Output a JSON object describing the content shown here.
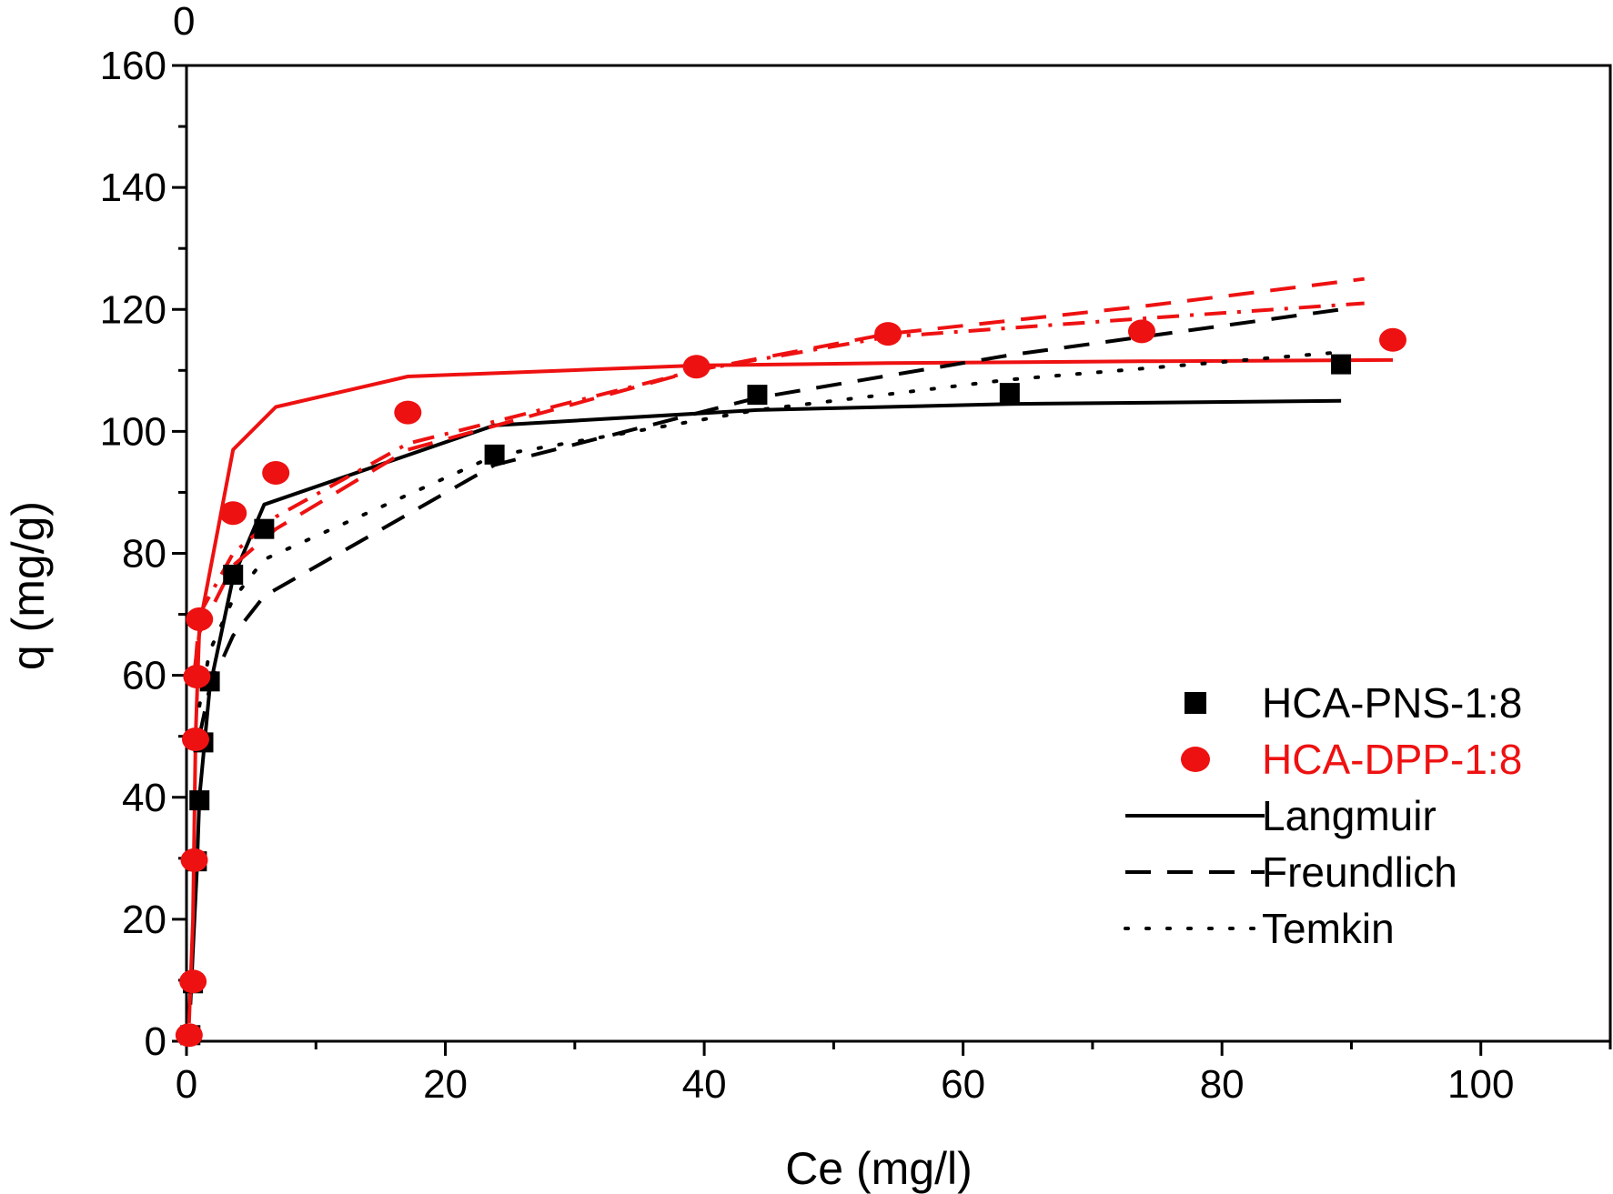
{
  "corner_label": "0",
  "chart_data": {
    "type": "scatter",
    "xlabel": "Ce (mg/l)",
    "ylabel": "q (mg/g)",
    "xlim": [
      0,
      110
    ],
    "ylim": [
      0,
      160
    ],
    "x_ticks": [
      0,
      20,
      40,
      60,
      80,
      100
    ],
    "y_ticks": [
      0,
      20,
      40,
      60,
      80,
      100,
      120,
      140,
      160
    ],
    "grid": false,
    "legend_position": "right-center",
    "colors": {
      "black": "#000000",
      "red": "#ee1111"
    },
    "series": [
      {
        "name": "HCA-PNS-1:8",
        "kind": "markers",
        "marker": "square",
        "color": "#000000",
        "x": [
          0.3,
          0.5,
          0.8,
          1.0,
          1.3,
          1.8,
          3.6,
          6.0,
          23.8,
          44.1,
          63.6,
          89.2
        ],
        "y": [
          1,
          9.5,
          29.5,
          39.5,
          49,
          59,
          76.5,
          84,
          96.2,
          106,
          106.3,
          111
        ]
      },
      {
        "name": "HCA-DPP-1:8",
        "kind": "markers",
        "marker": "circle",
        "color": "#ee1111",
        "x": [
          0.2,
          0.5,
          0.6,
          0.7,
          0.8,
          1.0,
          3.6,
          6.9,
          17.1,
          39.4,
          54.2,
          73.8,
          93.2
        ],
        "y": [
          1,
          9.8,
          29.7,
          49.5,
          59.8,
          69.2,
          86.6,
          93.2,
          103.1,
          110.6,
          116,
          116.4,
          115
        ]
      },
      {
        "name": "Langmuir",
        "fit_for": "HCA-PNS-1:8",
        "kind": "line",
        "style": "solid",
        "color": "#000000",
        "x": [
          0.3,
          0.5,
          0.8,
          1.0,
          1.8,
          3.6,
          6.0,
          23.8,
          44.1,
          63.6,
          89.2
        ],
        "y": [
          6,
          15,
          28,
          40,
          58,
          76,
          88,
          101,
          103.5,
          104.5,
          105
        ]
      },
      {
        "name": "Langmuir",
        "fit_for": "HCA-DPP-1:8",
        "kind": "line",
        "style": "solid",
        "color": "#ee1111",
        "x": [
          0.2,
          0.5,
          0.7,
          1.0,
          3.6,
          6.9,
          17.1,
          39.4,
          54.2,
          73.8,
          93.2
        ],
        "y": [
          3,
          20,
          50,
          68,
          97,
          104,
          109,
          110.8,
          111.2,
          111.5,
          111.7
        ]
      },
      {
        "name": "Freundlich",
        "fit_for": "HCA-PNS-1:8",
        "kind": "line",
        "style": "dash",
        "color": "#000000",
        "x": [
          1.0,
          1.8,
          3.6,
          6.0,
          23.8,
          44.1,
          63.6,
          89.2
        ],
        "y": [
          50,
          58,
          66.5,
          73,
          94.5,
          105.5,
          112.5,
          120
        ]
      },
      {
        "name": "Freundlich",
        "fit_for": "HCA-DPP-1:8",
        "kind": "line",
        "style": "dash",
        "color": "#ee1111",
        "x": [
          0.5,
          1.0,
          3.6,
          6.9,
          17.1,
          39.4,
          54.2,
          73.8,
          91.0
        ],
        "y": [
          59,
          67,
          78,
          84,
          97,
          110,
          116,
          120.5,
          125
        ]
      },
      {
        "name": "Temkin",
        "fit_for": "HCA-PNS-1:8",
        "kind": "line",
        "style": "dot",
        "color": "#000000",
        "x": [
          1.0,
          1.8,
          3.6,
          6.0,
          23.8,
          44.1,
          63.6,
          89.2
        ],
        "y": [
          55,
          64,
          72.5,
          79,
          96,
          103.5,
          108.5,
          113
        ]
      },
      {
        "name": "Temkin",
        "fit_for": "HCA-DPP-1:8",
        "kind": "line",
        "style": "dashdot",
        "color": "#ee1111",
        "x": [
          0.7,
          1.0,
          3.6,
          6.9,
          17.1,
          39.4,
          54.2,
          73.8,
          91.0
        ],
        "y": [
          62,
          70,
          80,
          86,
          98,
          110,
          115.5,
          118.5,
          121
        ]
      }
    ],
    "legend": [
      {
        "label": "HCA-PNS-1:8",
        "symbol": "square",
        "color": "#000000"
      },
      {
        "label": "HCA-DPP-1:8",
        "symbol": "circle",
        "color": "#ee1111"
      },
      {
        "label": "Langmuir",
        "symbol": "solid",
        "color": "#000000"
      },
      {
        "label": "Freundlich",
        "symbol": "dash",
        "color": "#000000"
      },
      {
        "label": "Temkin",
        "symbol": "dot",
        "color": "#000000"
      }
    ]
  }
}
